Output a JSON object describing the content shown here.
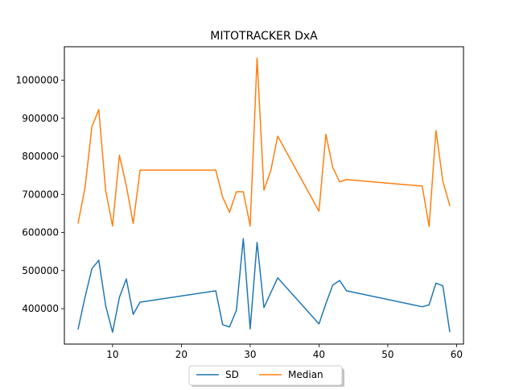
{
  "chart_data": {
    "type": "line",
    "title": "MITOTRACKER DxA",
    "xlabel": "",
    "ylabel": "",
    "xlim": [
      3,
      61
    ],
    "ylim": [
      307000,
      1088000
    ],
    "xticks": [
      10,
      20,
      30,
      40,
      50,
      60
    ],
    "yticks": [
      400000,
      500000,
      600000,
      700000,
      800000,
      900000,
      1000000
    ],
    "xtick_labels": [
      "10",
      "20",
      "30",
      "40",
      "50",
      "60"
    ],
    "ytick_labels": [
      "400000",
      "500000",
      "600000",
      "700000",
      "800000",
      "900000",
      "1000000"
    ],
    "grid": false,
    "legend": {
      "placement": "bottom-center",
      "columns": 2
    },
    "series": [
      {
        "name": "SD",
        "color": "#1f77b4",
        "points": [
          [
            5,
            347000
          ],
          [
            6,
            430000
          ],
          [
            7,
            505000
          ],
          [
            8,
            527000
          ],
          [
            9,
            408000
          ],
          [
            10,
            338000
          ],
          [
            11,
            430000
          ],
          [
            12,
            478000
          ],
          [
            13,
            385000
          ],
          [
            14,
            417000
          ],
          [
            25,
            447000
          ],
          [
            26,
            358000
          ],
          [
            27,
            352000
          ],
          [
            28,
            396000
          ],
          [
            29,
            584000
          ],
          [
            30,
            347000
          ],
          [
            31,
            574000
          ],
          [
            32,
            403000
          ],
          [
            34,
            481000
          ],
          [
            40,
            360000
          ],
          [
            41,
            413000
          ],
          [
            42,
            462000
          ],
          [
            43,
            474000
          ],
          [
            44,
            447000
          ],
          [
            55,
            405000
          ],
          [
            56,
            410000
          ],
          [
            57,
            467000
          ],
          [
            58,
            460000
          ],
          [
            59,
            340000
          ]
        ]
      },
      {
        "name": "Median",
        "color": "#ff7f0e",
        "points": [
          [
            5,
            625000
          ],
          [
            6,
            718000
          ],
          [
            7,
            878000
          ],
          [
            8,
            923000
          ],
          [
            9,
            710000
          ],
          [
            10,
            617000
          ],
          [
            11,
            803000
          ],
          [
            12,
            723000
          ],
          [
            13,
            624000
          ],
          [
            14,
            764000
          ],
          [
            25,
            764000
          ],
          [
            26,
            693000
          ],
          [
            27,
            653000
          ],
          [
            28,
            707000
          ],
          [
            29,
            707000
          ],
          [
            30,
            617000
          ],
          [
            31,
            1058000
          ],
          [
            32,
            711000
          ],
          [
            33,
            763000
          ],
          [
            34,
            853000
          ],
          [
            40,
            656000
          ],
          [
            41,
            858000
          ],
          [
            42,
            771000
          ],
          [
            43,
            733000
          ],
          [
            44,
            739000
          ],
          [
            55,
            722000
          ],
          [
            56,
            616000
          ],
          [
            57,
            868000
          ],
          [
            58,
            735000
          ],
          [
            59,
            671000
          ]
        ]
      }
    ]
  }
}
